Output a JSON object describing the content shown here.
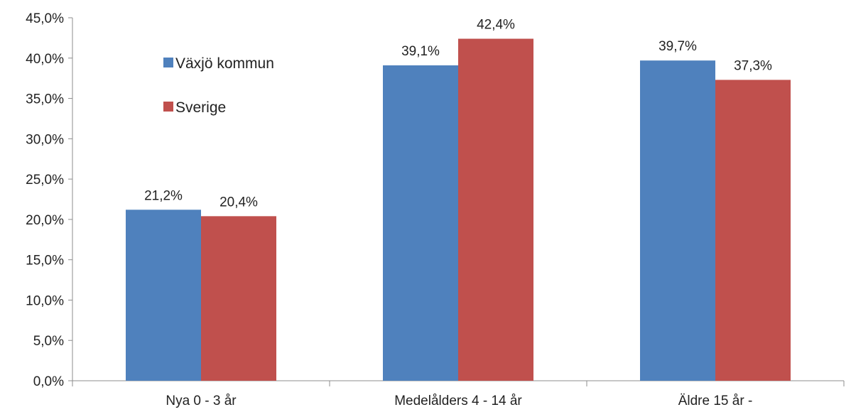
{
  "chart_data": {
    "type": "bar",
    "title": "",
    "xlabel": "",
    "ylabel": "",
    "categories": [
      "Nya 0 - 3 år",
      "Medelålders 4 - 14 år",
      "Äldre 15 år -"
    ],
    "series": [
      {
        "name": "Växjö kommun",
        "color": "#4F81BD",
        "values": [
          21.2,
          39.1,
          39.7
        ],
        "labels": [
          "21,2%",
          "39,1%",
          "39,7%"
        ]
      },
      {
        "name": "Sverige",
        "color": "#C0504D",
        "values": [
          20.4,
          42.4,
          37.3
        ],
        "labels": [
          "20,4%",
          "42,4%",
          "37,3%"
        ]
      }
    ],
    "ylim": [
      0,
      45
    ],
    "yticks": [
      0,
      5,
      10,
      15,
      20,
      25,
      30,
      35,
      40,
      45
    ],
    "ytick_labels": [
      "0,0%",
      "5,0%",
      "10,0%",
      "15,0%",
      "20,0%",
      "25,0%",
      "30,0%",
      "35,0%",
      "40,0%",
      "45,0%"
    ],
    "grid": false,
    "legend_position": "top-left"
  }
}
